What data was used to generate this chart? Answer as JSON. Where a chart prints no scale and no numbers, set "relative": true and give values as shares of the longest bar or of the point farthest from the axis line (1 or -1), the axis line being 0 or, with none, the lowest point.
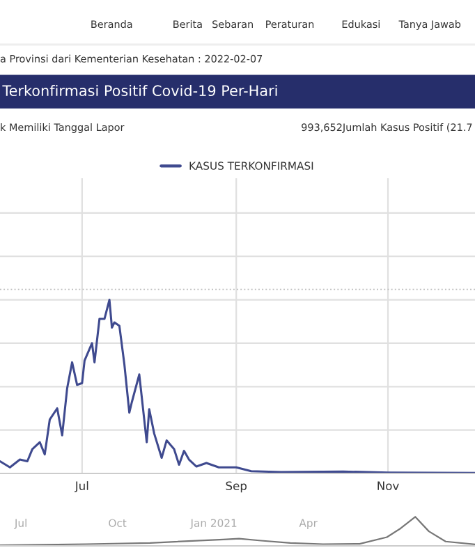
{
  "chart_data": [
    {
      "type": "line",
      "title": "Terkonfirmasi Positif Covid-19 Per-Hari",
      "relative": true,
      "grid": true,
      "legend": "top",
      "marker": "none",
      "line_style": "solid",
      "annotations": [
        "Beranda",
        "Berita",
        "Sebaran",
        "Peraturan",
        "Edukasi",
        "Tanya Jawab",
        "a Provinsi dari Kementerian Kesehatan : 2022-02-07",
        "k Memiliki Tanggal Lapor",
        "993,652Jumlah Kasus Positif (21.7"
      ],
      "xlim": [
        "2021-05-29",
        "2021-12-06"
      ],
      "xticks": [
        {
          "value": "2021-07-01",
          "label": "Jul"
        },
        {
          "value": "2021-09-01",
          "label": "Sep"
        },
        {
          "value": "2021-11-01",
          "label": "Nov"
        }
      ],
      "ref_lines": [
        {
          "axis": "y",
          "value": 1.06,
          "label": null,
          "color": "#bbbbbb",
          "line_style": "dotted"
        }
      ],
      "x": [
        "2021-05-29",
        "2021-06-02",
        "2021-06-06",
        "2021-06-09",
        "2021-06-11",
        "2021-06-14",
        "2021-06-16",
        "2021-06-18",
        "2021-06-21",
        "2021-06-23",
        "2021-06-25",
        "2021-06-27",
        "2021-06-29",
        "2021-07-01",
        "2021-07-02",
        "2021-07-05",
        "2021-07-06",
        "2021-07-08",
        "2021-07-10",
        "2021-07-12",
        "2021-07-13",
        "2021-07-14",
        "2021-07-16",
        "2021-07-18",
        "2021-07-20",
        "2021-07-21",
        "2021-07-24",
        "2021-07-27",
        "2021-07-28",
        "2021-07-30",
        "2021-08-02",
        "2021-08-04",
        "2021-08-07",
        "2021-08-09",
        "2021-08-11",
        "2021-08-13",
        "2021-08-16",
        "2021-08-20",
        "2021-08-25",
        "2021-09-01",
        "2021-09-07",
        "2021-09-19",
        "2021-10-14",
        "2021-11-01",
        "2021-12-06"
      ],
      "series": [
        {
          "name": "KASUS TERKONFIRMASI",
          "color": "#3f4a8f",
          "values": [
            0.07,
            0.035,
            0.08,
            0.07,
            0.14,
            0.18,
            0.11,
            0.31,
            0.375,
            0.22,
            0.49,
            0.64,
            0.51,
            0.52,
            0.65,
            0.75,
            0.64,
            0.89,
            0.89,
            1.0,
            0.84,
            0.87,
            0.85,
            0.63,
            0.35,
            0.41,
            0.57,
            0.18,
            0.37,
            0.23,
            0.09,
            0.19,
            0.14,
            0.05,
            0.13,
            0.08,
            0.04,
            0.06,
            0.035,
            0.035,
            0.013,
            0.008,
            0.011,
            0.005,
            0.003
          ]
        }
      ]
    },
    {
      "type": "line",
      "relative": true,
      "grid": false,
      "marker": "none",
      "line_style": "solid",
      "xlim": [
        "2020-06-11",
        "2021-09-07"
      ],
      "xticks": [
        {
          "value": "2020-07-01",
          "label": "Jul"
        },
        {
          "value": "2020-10-01",
          "label": "Oct"
        },
        {
          "value": "2021-01-01",
          "label": "Jan 2021"
        },
        {
          "value": "2021-04-01",
          "label": "Apr"
        }
      ],
      "x": [
        "2020-06-11",
        "2020-09-01",
        "2020-11-01",
        "2021-01-10",
        "2021-01-25",
        "2021-02-15",
        "2021-03-15",
        "2021-04-15",
        "2021-05-20",
        "2021-06-15",
        "2021-06-28",
        "2021-07-12",
        "2021-07-25",
        "2021-08-10",
        "2021-09-07"
      ],
      "series": [
        {
          "color": "#777777",
          "values": [
            0.02,
            0.06,
            0.1,
            0.22,
            0.25,
            0.18,
            0.1,
            0.06,
            0.07,
            0.3,
            0.6,
            1.0,
            0.5,
            0.15,
            0.05
          ]
        }
      ]
    }
  ]
}
